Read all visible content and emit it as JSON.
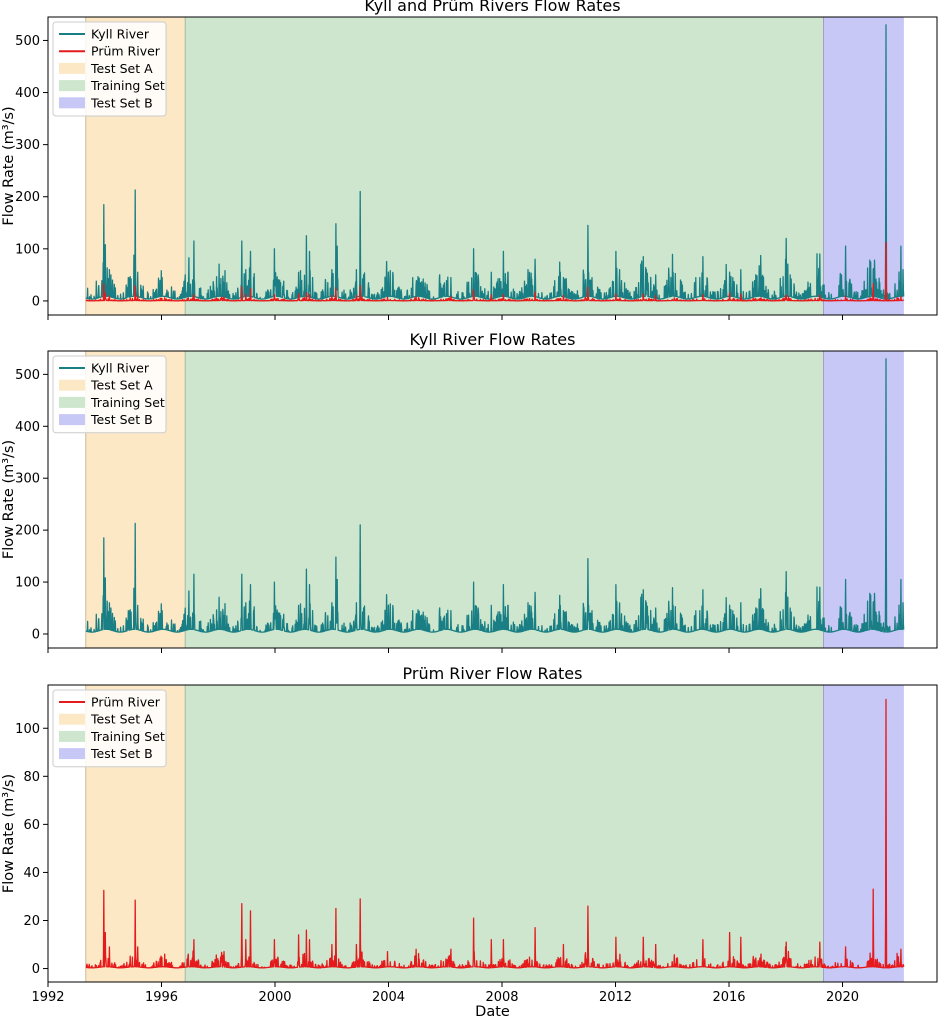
{
  "figure": {
    "xlabel": "Date",
    "ylabel": "Flow Rate (m³/s)"
  },
  "colors": {
    "kyll": "#1a7f84",
    "prum": "#e41a1c",
    "test_a": "#fde8c6",
    "training": "#cde6cd",
    "test_b": "#c8c8f7"
  },
  "chart_data": [
    {
      "type": "line",
      "title": "Kyll and Prüm Rivers Flow Rates",
      "xlabel": "",
      "ylabel": "Flow Rate (m³/s)",
      "xlim": [
        "1992-01-01",
        "2023-05-01"
      ],
      "ylim": [
        -27,
        545
      ],
      "yticks": [
        0,
        100,
        200,
        300,
        400,
        500
      ],
      "xticks": [
        "1992",
        "1996",
        "2000",
        "2004",
        "2008",
        "2012",
        "2016",
        "2020"
      ],
      "show_xtick_labels": false,
      "legend_position": "upper left",
      "legend": [
        "Kyll River",
        "Prüm River",
        "Test Set A",
        "Training Set",
        "Test Set B"
      ],
      "spans": [
        {
          "name": "Test Set A",
          "start": "1993-05-01",
          "end": "1996-11-01",
          "color": "#fde8c6"
        },
        {
          "name": "Training Set",
          "start": "1996-11-01",
          "end": "2019-05-01",
          "color": "#cde6cd"
        },
        {
          "name": "Test Set B",
          "start": "2019-05-01",
          "end": "2022-03-01",
          "color": "#c8c8f7"
        }
      ],
      "series": [
        {
          "name": "Kyll River",
          "key": "kyll",
          "color": "#1a7f84"
        },
        {
          "name": "Prüm River",
          "key": "prum",
          "color": "#e41a1c"
        }
      ]
    },
    {
      "type": "line",
      "title": "Kyll River Flow Rates",
      "xlabel": "",
      "ylabel": "Flow Rate (m³/s)",
      "xlim": [
        "1992-01-01",
        "2023-05-01"
      ],
      "ylim": [
        -27,
        545
      ],
      "yticks": [
        0,
        100,
        200,
        300,
        400,
        500
      ],
      "xticks": [
        "1992",
        "1996",
        "2000",
        "2004",
        "2008",
        "2012",
        "2016",
        "2020"
      ],
      "show_xtick_labels": false,
      "legend_position": "upper left",
      "legend": [
        "Kyll River",
        "Test Set A",
        "Training Set",
        "Test Set B"
      ],
      "spans": [
        {
          "name": "Test Set A",
          "start": "1993-05-01",
          "end": "1996-11-01",
          "color": "#fde8c6"
        },
        {
          "name": "Training Set",
          "start": "1996-11-01",
          "end": "2019-05-01",
          "color": "#cde6cd"
        },
        {
          "name": "Test Set B",
          "start": "2019-05-01",
          "end": "2022-03-01",
          "color": "#c8c8f7"
        }
      ],
      "series": [
        {
          "name": "Kyll River",
          "key": "kyll",
          "color": "#1a7f84"
        }
      ]
    },
    {
      "type": "line",
      "title": "Prüm River Flow Rates",
      "xlabel": "Date",
      "ylabel": "Flow Rate (m³/s)",
      "xlim": [
        "1992-01-01",
        "2023-05-01"
      ],
      "ylim": [
        -5.6,
        118
      ],
      "yticks": [
        0,
        20,
        40,
        60,
        80,
        100
      ],
      "xticks": [
        "1992",
        "1996",
        "2000",
        "2004",
        "2008",
        "2012",
        "2016",
        "2020"
      ],
      "show_xtick_labels": true,
      "legend_position": "upper left",
      "legend": [
        "Prüm River",
        "Test Set A",
        "Training Set",
        "Test Set B"
      ],
      "spans": [
        {
          "name": "Test Set A",
          "start": "1993-05-01",
          "end": "1996-11-01",
          "color": "#fde8c6"
        },
        {
          "name": "Training Set",
          "start": "1996-11-01",
          "end": "2019-05-01",
          "color": "#cde6cd"
        },
        {
          "name": "Test Set B",
          "start": "2019-05-01",
          "end": "2022-03-01",
          "color": "#c8c8f7"
        }
      ],
      "series": [
        {
          "name": "Prüm River",
          "key": "prum",
          "color": "#e41a1c"
        }
      ]
    }
  ],
  "series_data": {
    "date_range": [
      "1993-05-01",
      "2022-03-01"
    ],
    "kyll": {
      "base": 6,
      "peaks": [
        {
          "date": "1993-09-15",
          "value": 38
        },
        {
          "date": "1993-12-20",
          "value": 185
        },
        {
          "date": "1994-01-10",
          "value": 108
        },
        {
          "date": "1994-03-01",
          "value": 60
        },
        {
          "date": "1994-05-15",
          "value": 25
        },
        {
          "date": "1994-11-01",
          "value": 45
        },
        {
          "date": "1995-01-10",
          "value": 88
        },
        {
          "date": "1995-01-28",
          "value": 213
        },
        {
          "date": "1995-03-01",
          "value": 55
        },
        {
          "date": "1995-04-10",
          "value": 30
        },
        {
          "date": "1996-03-01",
          "value": 14
        },
        {
          "date": "1996-12-10",
          "value": 35
        },
        {
          "date": "1997-02-20",
          "value": 115
        },
        {
          "date": "1997-12-20",
          "value": 25
        },
        {
          "date": "1998-03-15",
          "value": 35
        },
        {
          "date": "1998-10-30",
          "value": 115
        },
        {
          "date": "1998-12-20",
          "value": 60
        },
        {
          "date": "1999-02-20",
          "value": 95
        },
        {
          "date": "1999-04-01",
          "value": 45
        },
        {
          "date": "1999-12-25",
          "value": 100
        },
        {
          "date": "2000-03-01",
          "value": 40
        },
        {
          "date": "2000-11-01",
          "value": 55
        },
        {
          "date": "2001-02-10",
          "value": 125
        },
        {
          "date": "2001-03-20",
          "value": 95
        },
        {
          "date": "2001-05-01",
          "value": 45
        },
        {
          "date": "2002-01-01",
          "value": 60
        },
        {
          "date": "2002-02-25",
          "value": 148
        },
        {
          "date": "2002-03-10",
          "value": 105
        },
        {
          "date": "2002-11-15",
          "value": 60
        },
        {
          "date": "2003-01-03",
          "value": 210
        },
        {
          "date": "2003-02-15",
          "value": 50
        },
        {
          "date": "2003-12-20",
          "value": 35
        },
        {
          "date": "2004-01-20",
          "value": 40
        },
        {
          "date": "2004-12-20",
          "value": 30
        },
        {
          "date": "2005-02-20",
          "value": 35
        },
        {
          "date": "2005-12-10",
          "value": 30
        },
        {
          "date": "2006-03-15",
          "value": 45
        },
        {
          "date": "2006-12-30",
          "value": 100
        },
        {
          "date": "2007-03-01",
          "value": 50
        },
        {
          "date": "2007-08-15",
          "value": 55
        },
        {
          "date": "2008-01-20",
          "value": 95
        },
        {
          "date": "2008-03-15",
          "value": 55
        },
        {
          "date": "2008-12-20",
          "value": 55
        },
        {
          "date": "2009-03-01",
          "value": 80
        },
        {
          "date": "2010-01-20",
          "value": 55
        },
        {
          "date": "2010-03-01",
          "value": 45
        },
        {
          "date": "2010-11-15",
          "value": 50
        },
        {
          "date": "2011-01-10",
          "value": 145
        },
        {
          "date": "2011-02-15",
          "value": 40
        },
        {
          "date": "2012-01-05",
          "value": 95
        },
        {
          "date": "2012-02-20",
          "value": 45
        },
        {
          "date": "2012-12-25",
          "value": 85
        },
        {
          "date": "2013-02-01",
          "value": 60
        },
        {
          "date": "2013-06-01",
          "value": 50
        },
        {
          "date": "2014-01-10",
          "value": 55
        },
        {
          "date": "2014-12-20",
          "value": 45
        },
        {
          "date": "2015-02-01",
          "value": 85
        },
        {
          "date": "2015-11-25",
          "value": 70
        },
        {
          "date": "2016-01-10",
          "value": 55
        },
        {
          "date": "2016-06-01",
          "value": 60
        },
        {
          "date": "2017-01-20",
          "value": 30
        },
        {
          "date": "2017-03-15",
          "value": 45
        },
        {
          "date": "2017-12-30",
          "value": 80
        },
        {
          "date": "2018-01-05",
          "value": 120
        },
        {
          "date": "2018-03-01",
          "value": 50
        },
        {
          "date": "2019-03-15",
          "value": 90
        },
        {
          "date": "2019-12-20",
          "value": 50
        },
        {
          "date": "2020-02-10",
          "value": 105
        },
        {
          "date": "2020-12-30",
          "value": 75
        },
        {
          "date": "2021-02-01",
          "value": 60
        },
        {
          "date": "2021-07-15",
          "value": 530
        },
        {
          "date": "2022-01-20",
          "value": 105
        },
        {
          "date": "2022-02-20",
          "value": 60
        }
      ]
    },
    "prum": {
      "base": 0.5,
      "peaks": [
        {
          "date": "1993-12-20",
          "value": 32.5
        },
        {
          "date": "1994-01-10",
          "value": 15
        },
        {
          "date": "1994-03-01",
          "value": 9
        },
        {
          "date": "1995-01-28",
          "value": 28.5
        },
        {
          "date": "1995-03-01",
          "value": 9
        },
        {
          "date": "1996-12-10",
          "value": 6
        },
        {
          "date": "1997-02-20",
          "value": 12
        },
        {
          "date": "1998-03-15",
          "value": 7
        },
        {
          "date": "1998-10-30",
          "value": 27
        },
        {
          "date": "1998-12-20",
          "value": 12
        },
        {
          "date": "1999-02-20",
          "value": 24
        },
        {
          "date": "1999-12-25",
          "value": 12
        },
        {
          "date": "2000-11-01",
          "value": 14
        },
        {
          "date": "2001-02-10",
          "value": 16
        },
        {
          "date": "2001-03-20",
          "value": 12
        },
        {
          "date": "2002-01-01",
          "value": 10
        },
        {
          "date": "2002-02-25",
          "value": 25
        },
        {
          "date": "2002-11-15",
          "value": 10
        },
        {
          "date": "2003-01-03",
          "value": 29
        },
        {
          "date": "2003-12-20",
          "value": 7
        },
        {
          "date": "2004-12-20",
          "value": 8
        },
        {
          "date": "2006-03-15",
          "value": 8
        },
        {
          "date": "2006-12-30",
          "value": 21
        },
        {
          "date": "2007-08-15",
          "value": 12
        },
        {
          "date": "2008-01-20",
          "value": 12
        },
        {
          "date": "2009-03-01",
          "value": 17
        },
        {
          "date": "2010-03-01",
          "value": 10
        },
        {
          "date": "2011-01-10",
          "value": 26
        },
        {
          "date": "2012-01-05",
          "value": 13
        },
        {
          "date": "2012-12-25",
          "value": 13
        },
        {
          "date": "2013-06-01",
          "value": 10
        },
        {
          "date": "2015-02-01",
          "value": 12
        },
        {
          "date": "2016-01-10",
          "value": 15
        },
        {
          "date": "2016-06-01",
          "value": 13
        },
        {
          "date": "2017-12-30",
          "value": 9
        },
        {
          "date": "2018-01-05",
          "value": 11
        },
        {
          "date": "2019-03-15",
          "value": 11
        },
        {
          "date": "2020-02-10",
          "value": 9
        },
        {
          "date": "2021-02-01",
          "value": 33
        },
        {
          "date": "2021-07-15",
          "value": 112
        },
        {
          "date": "2022-01-20",
          "value": 8
        }
      ]
    }
  }
}
